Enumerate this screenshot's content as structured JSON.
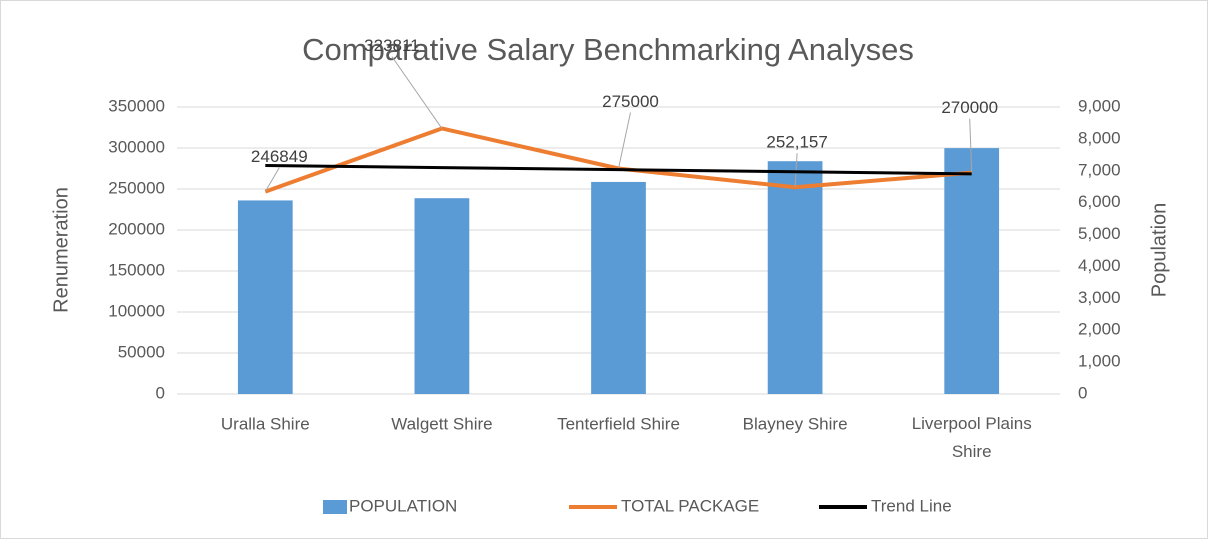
{
  "chart_data": {
    "type": "combo",
    "title": "Comparative Salary Benchmarking Analyses",
    "y_label": "Renumeration",
    "y2_label": "Population",
    "categories": [
      "Uralla Shire",
      "Walgett Shire",
      "Tenterfield Shire",
      "Blayney Shire",
      "Liverpool Plains Shire"
    ],
    "series": [
      {
        "name": "POPULATION",
        "type": "bar",
        "axis": "y2",
        "color": "#5b9bd5",
        "values": [
          6070,
          6140,
          6650,
          7300,
          7710
        ]
      },
      {
        "name": "TOTAL PACKAGE",
        "type": "line",
        "color": "#ed7d31",
        "values": [
          246849,
          323811,
          275000,
          252157,
          270000
        ],
        "value_labels": [
          "246849",
          "323811",
          "275000",
          "252,157",
          "270000"
        ]
      },
      {
        "name": "Trend Line",
        "type": "line",
        "color": "#000000",
        "values": [
          278634,
          276099,
          273563,
          271028,
          268493
        ]
      }
    ],
    "ylim": [
      0,
      350000
    ],
    "yticks": [
      0,
      50000,
      100000,
      150000,
      200000,
      250000,
      300000,
      350000
    ],
    "y2lim": [
      0,
      9000
    ],
    "y2ticks": [
      0,
      {
        "value": 1000,
        "label": "1,000"
      },
      {
        "value": 2000,
        "label": "2,000"
      },
      {
        "value": 3000,
        "label": "3,000"
      },
      {
        "value": 4000,
        "label": "4,000"
      },
      {
        "value": 5000,
        "label": "5,000"
      },
      {
        "value": 6000,
        "label": "6,000"
      },
      {
        "value": 7000,
        "label": "7,000"
      },
      {
        "value": 8000,
        "label": "8,000"
      },
      {
        "value": 9000,
        "label": "9,000"
      }
    ],
    "grid": true,
    "legend": "bottom"
  }
}
